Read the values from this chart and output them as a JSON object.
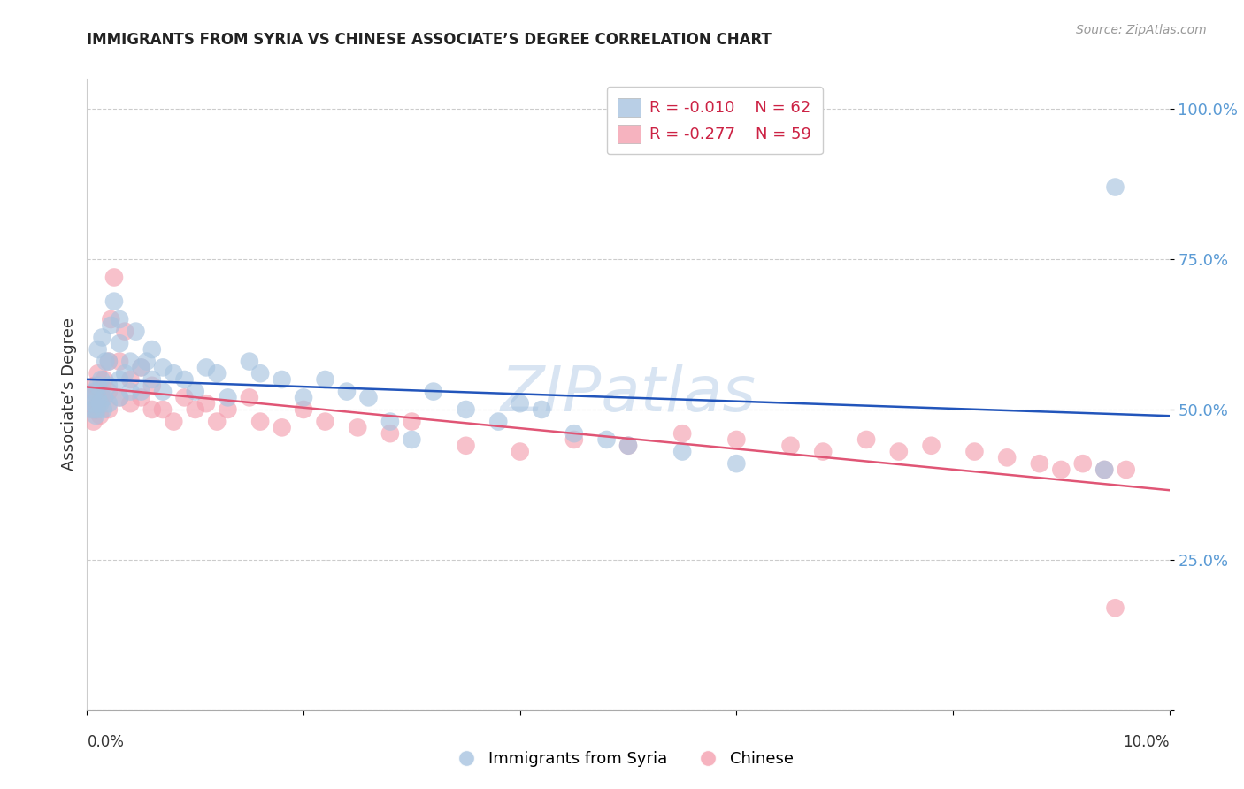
{
  "title": "IMMIGRANTS FROM SYRIA VS CHINESE ASSOCIATE’S DEGREE CORRELATION CHART",
  "source": "Source: ZipAtlas.com",
  "ylabel": "Associate’s Degree",
  "ytick_labels": [
    "",
    "25.0%",
    "50.0%",
    "75.0%",
    "100.0%"
  ],
  "ytick_values": [
    0.0,
    0.25,
    0.5,
    0.75,
    1.0
  ],
  "xlim": [
    0.0,
    0.1
  ],
  "ylim": [
    0.0,
    1.05
  ],
  "legend_r_syria": "R = -0.010",
  "legend_n_syria": "N = 62",
  "legend_r_chinese": "R = -0.277",
  "legend_n_chinese": "N = 59",
  "color_syria": "#a8c4e0",
  "color_chinese": "#f4a0b0",
  "color_line_syria": "#2255bb",
  "color_line_chinese": "#e05575",
  "watermark": "ZIPatlas",
  "syria_x": [
    0.0005,
    0.0005,
    0.0006,
    0.0007,
    0.0008,
    0.0009,
    0.001,
    0.001,
    0.001,
    0.0012,
    0.0013,
    0.0014,
    0.0015,
    0.0016,
    0.0017,
    0.002,
    0.002,
    0.002,
    0.0022,
    0.0025,
    0.003,
    0.003,
    0.003,
    0.003,
    0.0035,
    0.004,
    0.004,
    0.0045,
    0.005,
    0.005,
    0.0055,
    0.006,
    0.006,
    0.007,
    0.007,
    0.008,
    0.009,
    0.01,
    0.011,
    0.012,
    0.013,
    0.015,
    0.016,
    0.018,
    0.02,
    0.022,
    0.024,
    0.026,
    0.028,
    0.03,
    0.032,
    0.035,
    0.038,
    0.04,
    0.042,
    0.045,
    0.048,
    0.05,
    0.055,
    0.06,
    0.094,
    0.095
  ],
  "syria_y": [
    0.52,
    0.5,
    0.51,
    0.53,
    0.49,
    0.5,
    0.52,
    0.54,
    0.6,
    0.51,
    0.55,
    0.62,
    0.5,
    0.52,
    0.58,
    0.51,
    0.54,
    0.58,
    0.64,
    0.68,
    0.52,
    0.55,
    0.61,
    0.65,
    0.56,
    0.53,
    0.58,
    0.63,
    0.53,
    0.57,
    0.58,
    0.55,
    0.6,
    0.53,
    0.57,
    0.56,
    0.55,
    0.53,
    0.57,
    0.56,
    0.52,
    0.58,
    0.56,
    0.55,
    0.52,
    0.55,
    0.53,
    0.52,
    0.48,
    0.45,
    0.53,
    0.5,
    0.48,
    0.51,
    0.5,
    0.46,
    0.45,
    0.44,
    0.43,
    0.41,
    0.4,
    0.87
  ],
  "chinese_x": [
    0.0005,
    0.0005,
    0.0006,
    0.0007,
    0.0008,
    0.0009,
    0.001,
    0.001,
    0.0012,
    0.0014,
    0.0016,
    0.002,
    0.002,
    0.002,
    0.0022,
    0.0025,
    0.003,
    0.003,
    0.0035,
    0.004,
    0.004,
    0.005,
    0.005,
    0.006,
    0.006,
    0.007,
    0.008,
    0.009,
    0.01,
    0.011,
    0.012,
    0.013,
    0.015,
    0.016,
    0.018,
    0.02,
    0.022,
    0.025,
    0.028,
    0.03,
    0.035,
    0.04,
    0.045,
    0.05,
    0.055,
    0.06,
    0.065,
    0.068,
    0.072,
    0.075,
    0.078,
    0.082,
    0.085,
    0.088,
    0.09,
    0.092,
    0.094,
    0.095,
    0.096
  ],
  "chinese_y": [
    0.5,
    0.52,
    0.48,
    0.54,
    0.5,
    0.53,
    0.51,
    0.56,
    0.49,
    0.52,
    0.55,
    0.5,
    0.53,
    0.58,
    0.65,
    0.72,
    0.52,
    0.58,
    0.63,
    0.51,
    0.55,
    0.52,
    0.57,
    0.5,
    0.54,
    0.5,
    0.48,
    0.52,
    0.5,
    0.51,
    0.48,
    0.5,
    0.52,
    0.48,
    0.47,
    0.5,
    0.48,
    0.47,
    0.46,
    0.48,
    0.44,
    0.43,
    0.45,
    0.44,
    0.46,
    0.45,
    0.44,
    0.43,
    0.45,
    0.43,
    0.44,
    0.43,
    0.42,
    0.41,
    0.4,
    0.41,
    0.4,
    0.17,
    0.4
  ]
}
